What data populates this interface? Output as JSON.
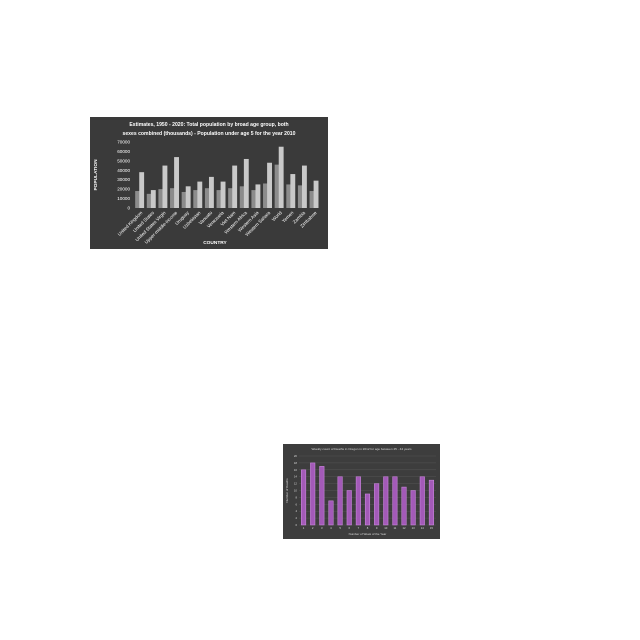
{
  "page": {
    "background": "#ffffff"
  },
  "chart_data": [
    {
      "type": "bar",
      "title": "Estimates, 1950 - 2020: Total population by broad age group, both sexes combined (thousands) - Population under age 5 for the year 2010",
      "title_lines": [
        "Estimates, 1950 - 2020: Total population by broad age group, both",
        "sexes combined (thousands) - Population under age 5 for the year 2010"
      ],
      "xlabel": "COUNTRY",
      "ylabel": "POPULATION",
      "ylim": [
        0,
        70000
      ],
      "yticks": [
        0,
        10000,
        20000,
        30000,
        40000,
        50000,
        60000,
        70000
      ],
      "grid": false,
      "legend": "none",
      "categories": [
        "United Kingdom",
        "United States",
        "United States Virgin",
        "Upper-middle-income",
        "Uruguay",
        "Uzbekistan",
        "Vanuatu",
        "Venezuela",
        "Viet Nam",
        "Western Africa",
        "Western Asia",
        "Western Sahara",
        "World",
        "Yemen",
        "Zambia",
        "Zimbabwe"
      ],
      "series": [
        {
          "values": [
            38000,
            19000,
            45000,
            54000,
            23000,
            28000,
            33000,
            28000,
            45000,
            52000,
            25000,
            48000,
            65000,
            36000,
            45000,
            29000
          ]
        },
        {
          "values": [
            18000,
            15000,
            20000,
            21000,
            17000,
            19000,
            21000,
            19000,
            21000,
            23000,
            19000,
            26000,
            46000,
            25000,
            24000,
            18000
          ]
        }
      ],
      "colors": {
        "background": "#3a3a3a",
        "bar_front": "#c9c9c9",
        "bar_back": "#8c8c8c",
        "text": "#ffffff"
      }
    },
    {
      "type": "bar",
      "title": "Weekly count of Deaths in Oregon in 2012 for age between 25 - 44 years",
      "xlabel": "Number of Week of the Year",
      "ylabel": "Number of Deaths",
      "ylim": [
        0,
        20
      ],
      "yticks": [
        0,
        2,
        4,
        6,
        8,
        10,
        12,
        14,
        16,
        18,
        20
      ],
      "grid": true,
      "legend": "none",
      "categories": [
        "1",
        "2",
        "3",
        "4",
        "5",
        "6",
        "7",
        "8",
        "9",
        "10",
        "11",
        "12",
        "13",
        "14",
        "15"
      ],
      "values": [
        16,
        18,
        17,
        7,
        14,
        10,
        14,
        9,
        12,
        14,
        14,
        11,
        10,
        14,
        13
      ],
      "colors": {
        "background": "#3d3d3d",
        "bar": "#a35ab8",
        "bar_edge": "#d38ee6",
        "text": "#d9d9d9",
        "grid": "#5a5a5a"
      }
    }
  ]
}
